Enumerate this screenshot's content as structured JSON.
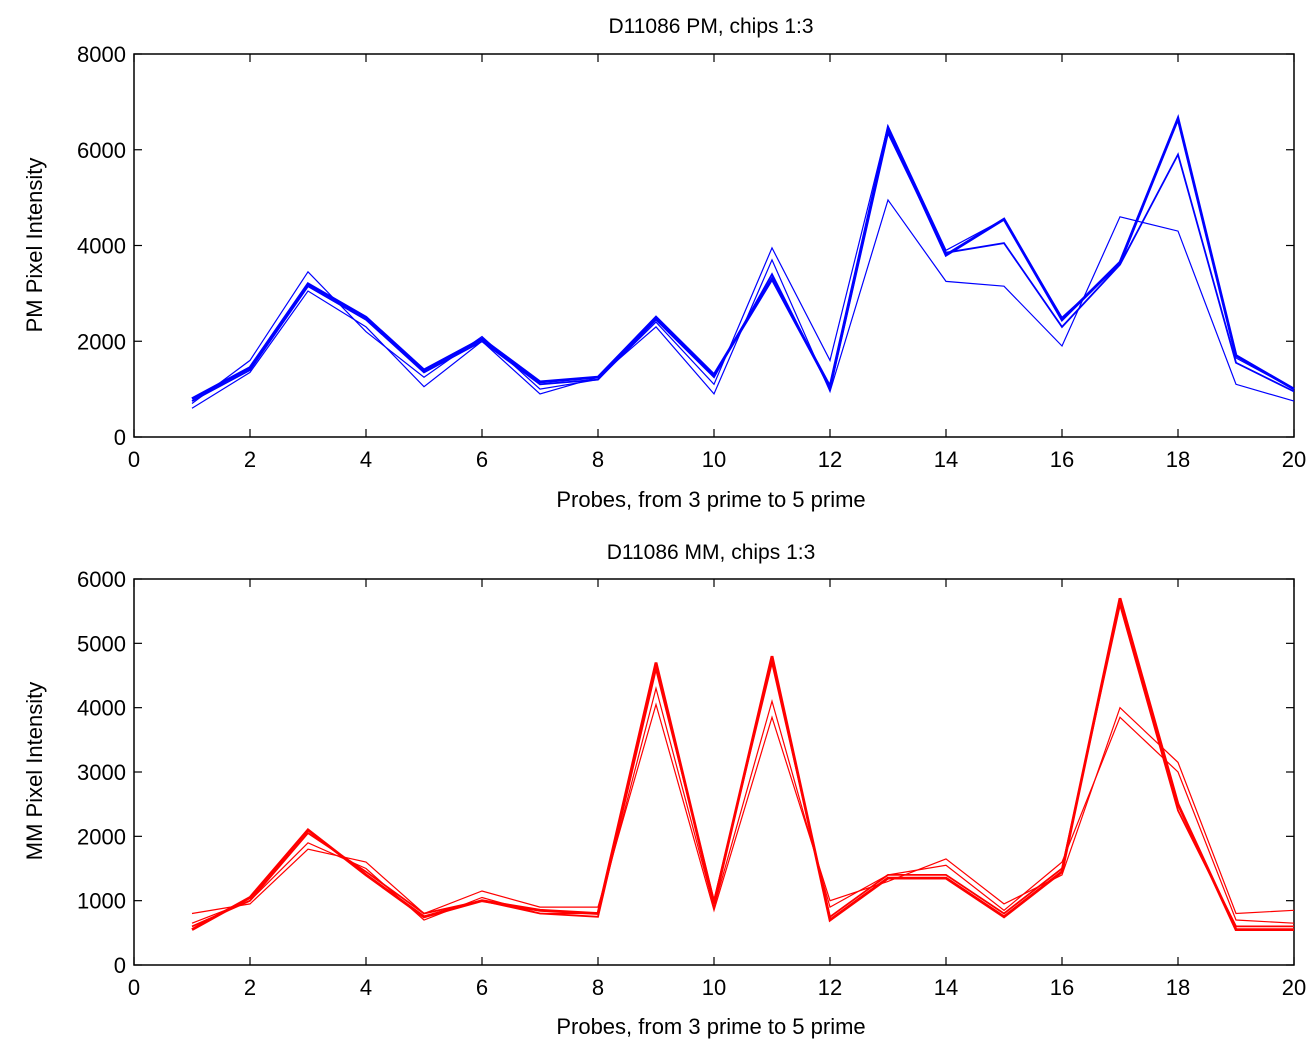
{
  "chart_data": [
    {
      "type": "line",
      "title": "D11086 PM, chips 1:3",
      "xlabel": "Probes, from 3 prime to 5 prime",
      "ylabel": "PM Pixel Intensity",
      "xlim": [
        0,
        20
      ],
      "ylim": [
        0,
        8000
      ],
      "xticks": [
        0,
        2,
        4,
        6,
        8,
        10,
        12,
        14,
        16,
        18,
        20
      ],
      "yticks": [
        0,
        2000,
        4000,
        6000,
        8000
      ],
      "color": "#0000ff",
      "x": [
        1,
        2,
        3,
        4,
        5,
        6,
        7,
        8,
        9,
        10,
        11,
        12,
        13,
        14,
        15,
        16,
        17,
        18,
        19,
        20
      ],
      "series": [
        {
          "values": [
            800,
            1450,
            3200,
            2500,
            1400,
            2050,
            1150,
            1250,
            2500,
            1300,
            3300,
            1050,
            6450,
            3800,
            4550,
            2450,
            3650,
            6650,
            1700,
            1000
          ]
        },
        {
          "values": [
            750,
            1400,
            3150,
            2450,
            1350,
            2000,
            1100,
            1200,
            2450,
            1250,
            3400,
            1000,
            6350,
            3850,
            4050,
            2300,
            3600,
            5900,
            1550,
            950
          ]
        },
        {
          "values": [
            600,
            1350,
            3050,
            2300,
            1050,
            2000,
            900,
            1250,
            2300,
            900,
            3700,
            950,
            4950,
            3250,
            3150,
            1900,
            4600,
            4300,
            1100,
            750
          ]
        },
        {
          "values": [
            700,
            1600,
            3450,
            2200,
            1250,
            2100,
            1000,
            1200,
            2400,
            1100,
            3950,
            1600,
            6500,
            3900,
            4550,
            2500,
            3600,
            6650,
            1650,
            1000
          ]
        }
      ]
    },
    {
      "type": "line",
      "title": "D11086 MM, chips 1:3",
      "xlabel": "Probes, from 3 prime to 5 prime",
      "ylabel": "MM Pixel Intensity",
      "xlim": [
        0,
        20
      ],
      "ylim": [
        0,
        6000
      ],
      "xticks": [
        0,
        2,
        4,
        6,
        8,
        10,
        12,
        14,
        16,
        18,
        20
      ],
      "yticks": [
        0,
        1000,
        2000,
        3000,
        4000,
        5000,
        6000
      ],
      "color": "#ff0000",
      "x": [
        1,
        2,
        3,
        4,
        5,
        6,
        7,
        8,
        9,
        10,
        11,
        12,
        13,
        14,
        15,
        16,
        17,
        18,
        19,
        20
      ],
      "series": [
        {
          "values": [
            550,
            1050,
            2100,
            1400,
            750,
            1000,
            850,
            800,
            4700,
            950,
            4800,
            700,
            1350,
            1350,
            750,
            1450,
            5700,
            2500,
            550,
            550
          ]
        },
        {
          "values": [
            600,
            1000,
            2050,
            1450,
            800,
            1000,
            800,
            750,
            4600,
            1000,
            4700,
            750,
            1400,
            1400,
            800,
            1500,
            5600,
            2400,
            600,
            600
          ]
        },
        {
          "values": [
            800,
            950,
            1800,
            1600,
            800,
            1150,
            900,
            900,
            4050,
            850,
            3850,
            1000,
            1300,
            1650,
            950,
            1400,
            4000,
            3150,
            800,
            850
          ]
        },
        {
          "values": [
            650,
            1000,
            1900,
            1500,
            700,
            1050,
            800,
            800,
            4300,
            900,
            4100,
            900,
            1400,
            1550,
            850,
            1600,
            3850,
            3000,
            700,
            650
          ]
        }
      ]
    }
  ]
}
